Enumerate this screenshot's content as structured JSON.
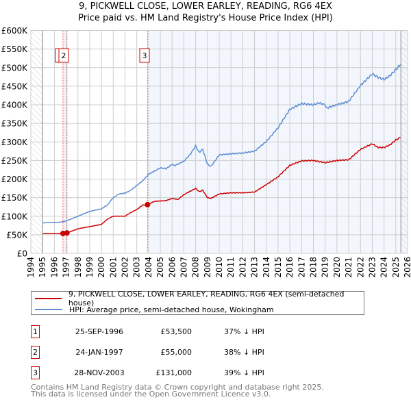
{
  "chart_data": {
    "type": "line",
    "title": "9, PICKWELL CLOSE, LOWER EARLEY, READING, RG6 4EX",
    "subtitle": "Price paid vs. HM Land Registry's House Price Index (HPI)",
    "xlim": [
      1994,
      2026
    ],
    "ylim": [
      0,
      600000
    ],
    "grid": true,
    "x_ticks": [
      "1994",
      "1995",
      "1996",
      "1997",
      "1998",
      "1999",
      "2000",
      "2001",
      "2002",
      "2003",
      "2004",
      "2005",
      "2006",
      "2007",
      "2008",
      "2009",
      "2010",
      "2011",
      "2012",
      "2013",
      "2014",
      "2015",
      "2016",
      "2017",
      "2018",
      "2019",
      "2020",
      "2021",
      "2022",
      "2023",
      "2024",
      "2025",
      "2026"
    ],
    "y_ticks": [
      {
        "v": 0,
        "label": "£0"
      },
      {
        "v": 50000,
        "label": "£50K"
      },
      {
        "v": 100000,
        "label": "£100K"
      },
      {
        "v": 150000,
        "label": "£150K"
      },
      {
        "v": 200000,
        "label": "£200K"
      },
      {
        "v": 250000,
        "label": "£250K"
      },
      {
        "v": 300000,
        "label": "£300K"
      },
      {
        "v": 350000,
        "label": "£350K"
      },
      {
        "v": 400000,
        "label": "£400K"
      },
      {
        "v": 450000,
        "label": "£450K"
      },
      {
        "v": 500000,
        "label": "£500K"
      },
      {
        "v": 550000,
        "label": "£550K"
      },
      {
        "v": 600000,
        "label": "£600K"
      }
    ],
    "hatched_ranges": [
      [
        1994,
        1995
      ],
      [
        2025.43,
        2026
      ]
    ],
    "shaded_from": 2003.91,
    "series": [
      {
        "name": "9, PICKWELL CLOSE, LOWER EARLEY, READING, RG6 4EX (semi-detached house)",
        "color": "#cc0000",
        "x": [
          1995,
          1996.73,
          1997.07,
          1998,
          1999,
          2000,
          2000.5,
          2001,
          2002,
          2002.5,
          2003,
          2003.5,
          2003.91,
          2004.5,
          2005.5,
          2006,
          2006.5,
          2007,
          2008,
          2008.3,
          2008.6,
          2009,
          2009.3,
          2010,
          2011,
          2012,
          2013,
          2014,
          2015,
          2016,
          2017,
          2018,
          2019,
          2020,
          2021,
          2022,
          2023,
          2023.5,
          2024,
          2024.5,
          2025,
          2025.4
        ],
        "y": [
          53500,
          53500,
          55000,
          66000,
          72000,
          78000,
          92000,
          100000,
          100000,
          110000,
          118000,
          130000,
          131000,
          140000,
          142000,
          148000,
          145000,
          158000,
          175000,
          166000,
          170000,
          150000,
          148000,
          160000,
          163000,
          163000,
          165000,
          185000,
          206000,
          237000,
          249000,
          250000,
          244000,
          250000,
          252000,
          280000,
          295000,
          285000,
          285000,
          292000,
          305000,
          312000
        ]
      },
      {
        "name": "HPI: Average price, semi-detached house, Wokingham",
        "color": "#5b8dd0",
        "x": [
          1995,
          1996.5,
          1997,
          1998,
          1999,
          2000,
          2000.5,
          2001,
          2001.5,
          2002,
          2002.5,
          2003,
          2003.5,
          2004,
          2005,
          2005.5,
          2006,
          2006.2,
          2007,
          2007.5,
          2008,
          2008.3,
          2008.6,
          2009,
          2009.3,
          2010,
          2011,
          2012,
          2013,
          2014,
          2015,
          2016,
          2017,
          2018,
          2018.5,
          2019,
          2019.1,
          2020,
          2021,
          2022,
          2023,
          2023.5,
          2024,
          2024.5,
          2025,
          2025.4
        ],
        "y": [
          82000,
          84000,
          87000,
          100000,
          113000,
          120000,
          130000,
          150000,
          160000,
          162000,
          170000,
          183000,
          195000,
          213000,
          230000,
          228000,
          240000,
          236000,
          248000,
          265000,
          289000,
          272000,
          280000,
          240000,
          234000,
          265000,
          268000,
          270000,
          275000,
          301000,
          338000,
          388000,
          403000,
          400000,
          405000,
          400000,
          391000,
          400000,
          409000,
          452000,
          483000,
          474000,
          468000,
          478000,
          495000,
          508000
        ]
      }
    ],
    "sales": [
      {
        "label": "1",
        "x": 1996.73,
        "y": 53500
      },
      {
        "label": "2",
        "x": 1997.07,
        "y": 55000
      },
      {
        "label": "3",
        "x": 2003.91,
        "y": 131000
      }
    ]
  },
  "title_line1": "9, PICKWELL CLOSE, LOWER EARLEY, READING, RG6 4EX",
  "title_line2": "Price paid vs. HM Land Registry's House Price Index (HPI)",
  "legend": {
    "property": "9, PICKWELL CLOSE, LOWER EARLEY, READING, RG6 4EX (semi-detached house)",
    "hpi": "HPI: Average price, semi-detached house, Wokingham",
    "property_color": "#cc0000",
    "hpi_color": "#5b8dd0"
  },
  "transactions": [
    {
      "num": "1",
      "date": "25-SEP-1996",
      "price": "£53,500",
      "hpi": "37% ↓ HPI"
    },
    {
      "num": "2",
      "date": "24-JAN-1997",
      "price": "£55,000",
      "hpi": "38% ↓ HPI"
    },
    {
      "num": "3",
      "date": "28-NOV-2003",
      "price": "£131,000",
      "hpi": "39% ↓ HPI"
    }
  ],
  "footer": {
    "line1": "Contains HM Land Registry data © Crown copyright and database right 2025.",
    "line2": "This data is licensed under the Open Government Licence v3.0."
  }
}
